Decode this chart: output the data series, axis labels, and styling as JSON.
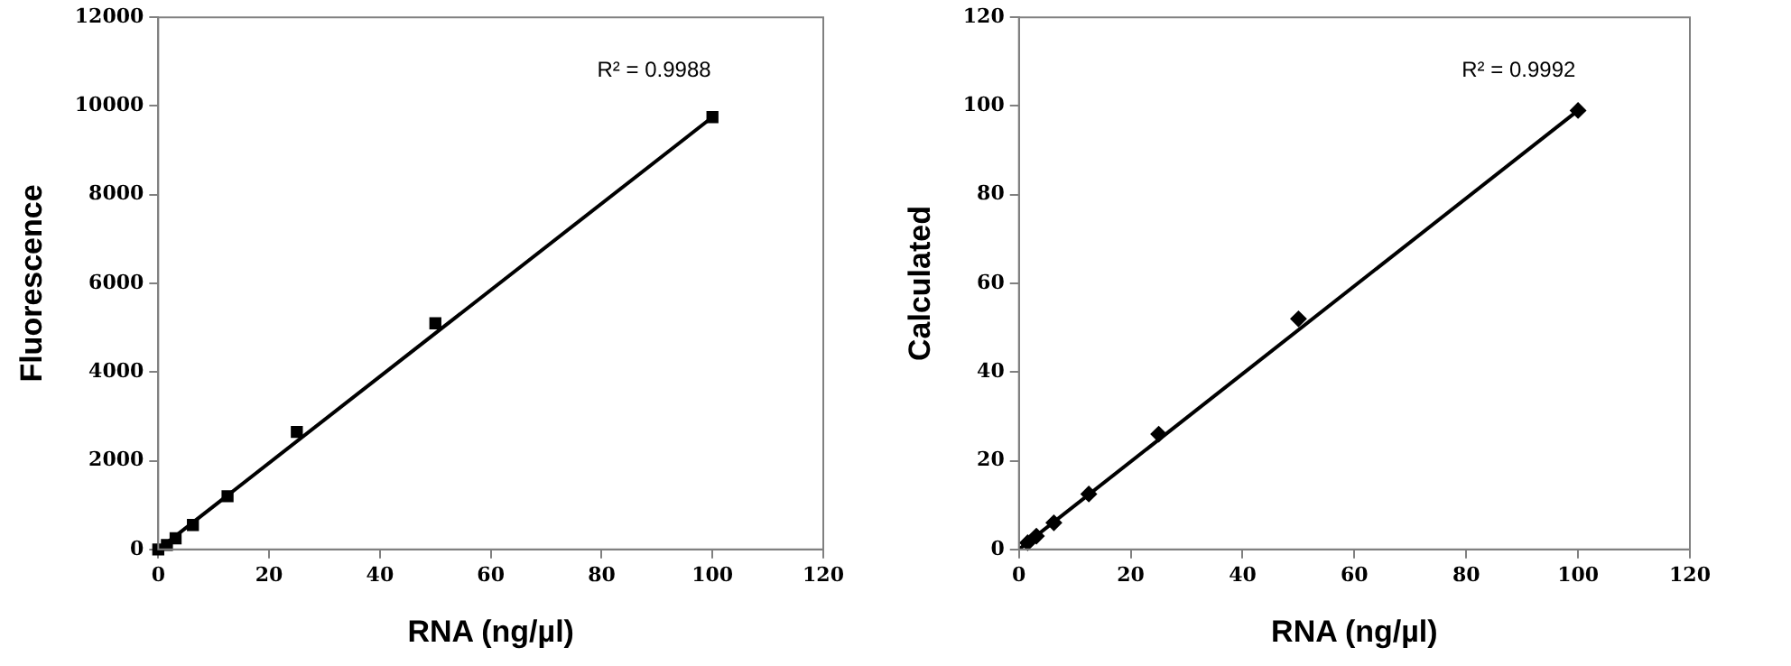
{
  "chart_data": [
    {
      "type": "scatter",
      "xlabel": "RNA (ng/µl)",
      "ylabel": "Fluorescence",
      "marker": "square",
      "grid": false,
      "legend": false,
      "xlim": [
        0,
        120
      ],
      "xticks": [
        0,
        20,
        40,
        60,
        80,
        100,
        120
      ],
      "ylim": [
        0,
        12000
      ],
      "yticks": [
        0,
        2000,
        4000,
        6000,
        8000,
        10000,
        12000
      ],
      "annotations": [
        "R² = 0.9988"
      ],
      "series": [
        {
          "color": "#000000",
          "x": [
            0,
            1.56,
            3.125,
            6.25,
            12.5,
            25,
            50,
            100
          ],
          "values": [
            0,
            100,
            250,
            550,
            1200,
            2650,
            5100,
            9750
          ]
        },
        {
          "type": "line",
          "marker": "none",
          "color": "#000000",
          "x": [
            0,
            100
          ],
          "values": [
            0,
            9750
          ]
        }
      ]
    },
    {
      "type": "scatter",
      "xlabel": "RNA (ng/µl)",
      "ylabel": "Calculated",
      "marker": "diamond",
      "grid": false,
      "legend": false,
      "xlim": [
        0,
        120
      ],
      "xticks": [
        0,
        20,
        40,
        60,
        80,
        100,
        120
      ],
      "ylim": [
        0,
        120
      ],
      "yticks": [
        0,
        20,
        40,
        60,
        80,
        100,
        120
      ],
      "annotations": [
        "R² = 0.9992"
      ],
      "series": [
        {
          "color": "#000000",
          "x": [
            1.56,
            3.125,
            6.25,
            12.5,
            25,
            50,
            100
          ],
          "values": [
            1.5,
            3,
            6,
            12.5,
            26,
            52,
            99
          ]
        },
        {
          "type": "line",
          "marker": "none",
          "color": "#000000",
          "x": [
            0,
            100
          ],
          "values": [
            0,
            99
          ]
        }
      ]
    }
  ]
}
